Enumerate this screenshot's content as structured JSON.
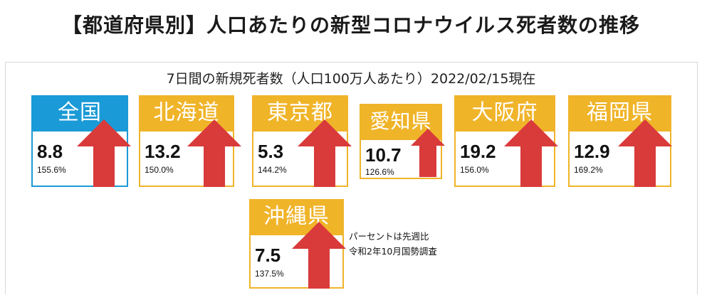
{
  "title": "【都道府県別】人口あたりの新型コロナウイルス死者数の推移",
  "subtitle": "7日間の新規死者数（人口100万人あたり）2022/02/15現在",
  "note": {
    "line1": "パーセントは先週比",
    "line2": "令和2年10月国勢調査"
  },
  "colors": {
    "national": "#1a9ad6",
    "prefecture": "#f0b429",
    "arrow": "#d93a3a"
  },
  "chart_data": {
    "type": "table",
    "title": "7日間の新規死者数（人口100万人あたり）2022/02/15現在",
    "series": [
      {
        "name": "全国",
        "value": "8.8",
        "change": "155.6%"
      },
      {
        "name": "北海道",
        "value": "13.2",
        "change": "150.0%"
      },
      {
        "name": "東京都",
        "value": "5.3",
        "change": "144.2%"
      },
      {
        "name": "愛知県",
        "value": "10.7",
        "change": "126.6%"
      },
      {
        "name": "大阪府",
        "value": "19.2",
        "change": "156.0%"
      },
      {
        "name": "福岡県",
        "value": "12.9",
        "change": "169.2%"
      },
      {
        "name": "沖縄県",
        "value": "7.5",
        "change": "137.5%"
      }
    ]
  }
}
